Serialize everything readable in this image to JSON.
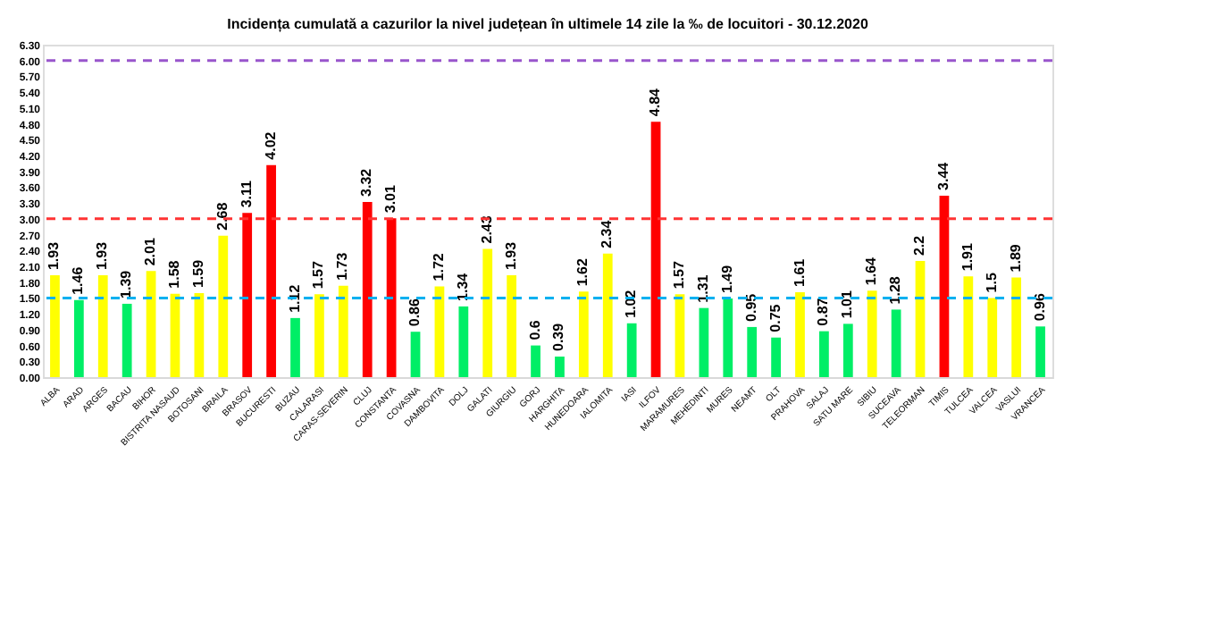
{
  "chart_data": {
    "type": "bar",
    "title": "Incidența cumulată a cazurilor la nivel județean în ultimele 14 zile la ‰ de locuitori - 30.12.2020",
    "categories": [
      "ALBA",
      "ARAD",
      "ARGES",
      "BACAU",
      "BIHOR",
      "BISTRITA NASAUD",
      "BOTOSANI",
      "BRAILA",
      "BRASOV",
      "BUCURESTI",
      "BUZAU",
      "CALARASI",
      "CARAS-SEVERIN",
      "CLUJ",
      "CONSTANTA",
      "COVASNA",
      "DAMBOVITA",
      "DOLJ",
      "GALATI",
      "GIURGIU",
      "GORJ",
      "HARGHITA",
      "HUNEDOARA",
      "IALOMITA",
      "IASI",
      "ILFOV",
      "MARAMURES",
      "MEHEDINTI",
      "MURES",
      "NEAMT",
      "OLT",
      "PRAHOVA",
      "SALAJ",
      "SATU MARE",
      "SIBIU",
      "SUCEAVA",
      "TELEORMAN",
      "TIMIS",
      "TULCEA",
      "VALCEA",
      "VASLUI",
      "VRANCEA"
    ],
    "values": [
      1.93,
      1.46,
      1.93,
      1.39,
      2.01,
      1.58,
      1.59,
      2.68,
      3.11,
      4.02,
      1.12,
      1.57,
      1.73,
      3.32,
      3.01,
      0.86,
      1.72,
      1.34,
      2.43,
      1.93,
      0.6,
      0.39,
      1.62,
      2.34,
      1.02,
      4.84,
      1.57,
      1.31,
      1.49,
      0.95,
      0.75,
      1.61,
      0.87,
      1.01,
      1.64,
      1.28,
      2.2,
      3.44,
      1.91,
      1.5,
      1.89,
      0.96
    ],
    "colors": [
      "#ffff00",
      "#00ee66",
      "#ffff00",
      "#00ee66",
      "#ffff00",
      "#ffff00",
      "#ffff00",
      "#ffff00",
      "#ff0000",
      "#ff0000",
      "#00ee66",
      "#ffff00",
      "#ffff00",
      "#ff0000",
      "#ff0000",
      "#00ee66",
      "#ffff00",
      "#00ee66",
      "#ffff00",
      "#ffff00",
      "#00ee66",
      "#00ee66",
      "#ffff00",
      "#ffff00",
      "#00ee66",
      "#ff0000",
      "#ffff00",
      "#00ee66",
      "#00ee66",
      "#00ee66",
      "#00ee66",
      "#ffff00",
      "#00ee66",
      "#00ee66",
      "#ffff00",
      "#00ee66",
      "#ffff00",
      "#ff0000",
      "#ffff00",
      "#ffff00",
      "#ffff00",
      "#00ee66"
    ],
    "ylim": [
      0,
      6.3
    ],
    "yticks": [
      {
        "value": 0,
        "label": "0.00"
      },
      {
        "value": 0.3,
        "label": "0.30"
      },
      {
        "value": 0.6,
        "label": "0.60"
      },
      {
        "value": 0.9,
        "label": "0.90"
      },
      {
        "value": 1.2,
        "label": "1.20"
      },
      {
        "value": 1.5,
        "label": "1.50"
      },
      {
        "value": 1.8,
        "label": "1.80"
      },
      {
        "value": 2.1,
        "label": "2.10"
      },
      {
        "value": 2.4,
        "label": "2.40"
      },
      {
        "value": 2.7,
        "label": "2.70"
      },
      {
        "value": 3.0,
        "label": "3.00"
      },
      {
        "value": 3.3,
        "label": "3.30"
      },
      {
        "value": 3.6,
        "label": "3.60"
      },
      {
        "value": 3.9,
        "label": "3.90"
      },
      {
        "value": 4.2,
        "label": "4.20"
      },
      {
        "value": 4.5,
        "label": "4.50"
      },
      {
        "value": 4.8,
        "label": "4.80"
      },
      {
        "value": 5.1,
        "label": "5.10"
      },
      {
        "value": 5.4,
        "label": "5.40"
      },
      {
        "value": 5.7,
        "label": "5.70"
      },
      {
        "value": 6.0,
        "label": "6.00"
      },
      {
        "value": 6.3,
        "label": "6.30"
      }
    ],
    "ref_lines": [
      {
        "axis": "y",
        "value": 1.5,
        "color": "#00b0f0",
        "line_style": "dashed"
      },
      {
        "axis": "y",
        "value": 3.0,
        "color": "#ff3333",
        "line_style": "dashed"
      },
      {
        "axis": "y",
        "value": 6.0,
        "color": "#9955cc",
        "line_style": "dashed"
      }
    ],
    "data_labels": true,
    "grid": false
  }
}
